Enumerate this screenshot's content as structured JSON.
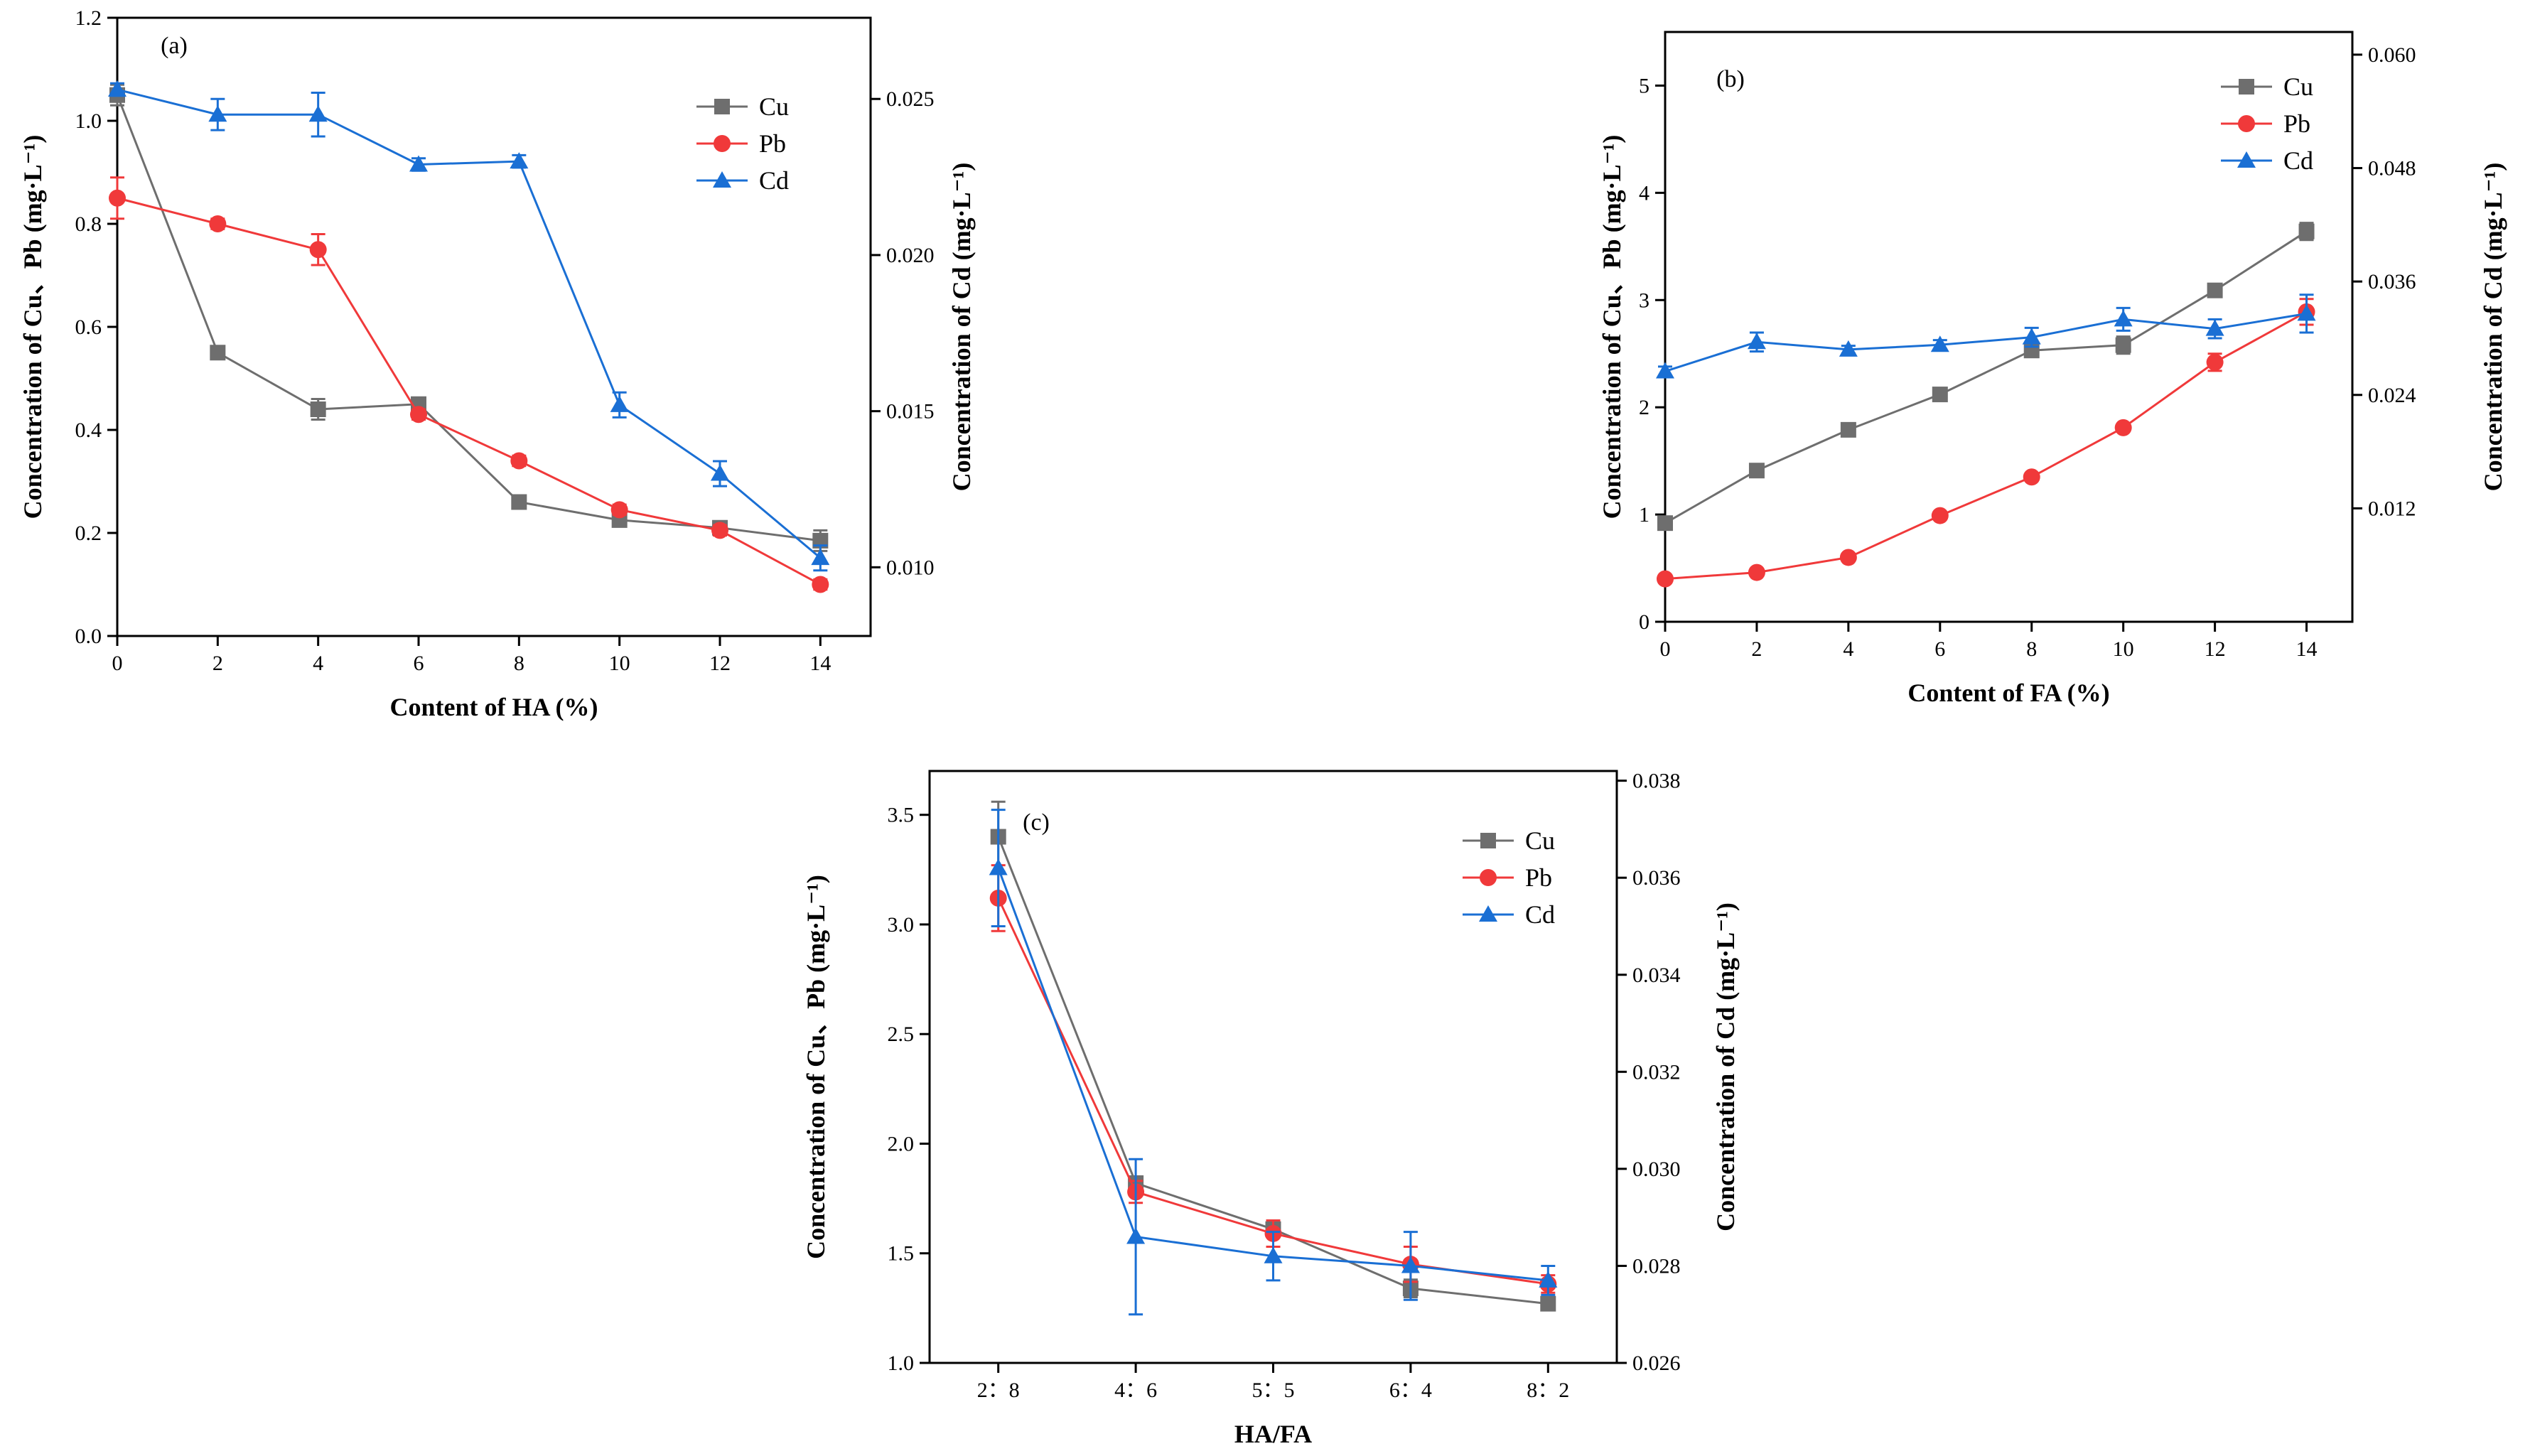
{
  "colors": {
    "cu": "#6e6e6e",
    "pb": "#f0393a",
    "cd": "#1a6fd4",
    "axis": "#000000"
  },
  "chart_data": [
    {
      "type": "line",
      "panel_label": "(a)",
      "xlabel": "Content of HA (%)",
      "ylabel": "Concentration of Cu、Pb (mg·L⁻¹)",
      "y2label": "Concentration of Cd  (mg·L⁻¹)",
      "x": [
        0,
        2,
        4,
        6,
        8,
        10,
        12,
        14
      ],
      "x_ticks": [
        0,
        2,
        4,
        6,
        8,
        10,
        12,
        14
      ],
      "x_tick_labels": [
        "0",
        "2",
        "4",
        "6",
        "8",
        "10",
        "12",
        "14"
      ],
      "xlim": [
        0,
        15
      ],
      "ylim": [
        0,
        1.2
      ],
      "y_ticks": [
        0,
        0.2,
        0.4,
        0.6,
        0.8,
        1.0,
        1.2
      ],
      "y_tick_labels": [
        "0.0",
        "0.2",
        "0.4",
        "0.6",
        "0.8",
        "1.0",
        "1.2"
      ],
      "y2lim": [
        0.0078,
        0.0276
      ],
      "y2_ticks": [
        0.01,
        0.015,
        0.02,
        0.025
      ],
      "y2_tick_labels": [
        "0.010",
        "0.015",
        "0.020",
        "0.025"
      ],
      "series": [
        {
          "name": "Cu",
          "axis": "left",
          "marker": "square",
          "values": [
            1.05,
            0.55,
            0.44,
            0.45,
            0.26,
            0.225,
            0.21,
            0.185
          ],
          "errors": [
            0.02,
            0.01,
            0.02,
            0.01,
            0.01,
            0.01,
            0.01,
            0.02
          ]
        },
        {
          "name": "Pb",
          "axis": "left",
          "marker": "circle",
          "values": [
            0.85,
            0.8,
            0.75,
            0.43,
            0.34,
            0.245,
            0.205,
            0.1
          ],
          "errors": [
            0.04,
            0.01,
            0.03,
            0.01,
            0.01,
            0.01,
            0.01,
            0.01
          ]
        },
        {
          "name": "Cd",
          "axis": "right",
          "marker": "triangle",
          "values": [
            0.0253,
            0.0245,
            0.0245,
            0.0229,
            0.023,
            0.0152,
            0.013,
            0.0103
          ],
          "errors": [
            0.0002,
            0.0005,
            0.0007,
            0.0002,
            0.0002,
            0.0004,
            0.0004,
            0.0004
          ]
        }
      ],
      "legend": "top-right"
    },
    {
      "type": "line",
      "panel_label": "(b)",
      "xlabel": "Content of FA (%)",
      "ylabel": "Concentration of Cu、Pb (mg·L⁻¹)",
      "y2label": "Concentration of Cd  (mg·L⁻¹)",
      "x": [
        0,
        2,
        4,
        6,
        8,
        10,
        12,
        14
      ],
      "x_ticks": [
        0,
        2,
        4,
        6,
        8,
        10,
        12,
        14
      ],
      "x_tick_labels": [
        "0",
        "2",
        "4",
        "6",
        "8",
        "10",
        "12",
        "14"
      ],
      "xlim": [
        0,
        15
      ],
      "ylim": [
        0,
        5.5
      ],
      "y_ticks": [
        0,
        1,
        2,
        3,
        4,
        5
      ],
      "y_tick_labels": [
        "0",
        "1",
        "2",
        "3",
        "4",
        "5"
      ],
      "y2lim": [
        0,
        0.0624
      ],
      "y2_ticks": [
        0.012,
        0.024,
        0.036,
        0.048,
        0.06
      ],
      "y2_tick_labels": [
        "0.012",
        "0.024",
        "0.036",
        "0.048",
        "0.060"
      ],
      "series": [
        {
          "name": "Cu",
          "axis": "left",
          "marker": "square",
          "values": [
            0.92,
            1.41,
            1.79,
            2.12,
            2.53,
            2.58,
            3.09,
            3.64
          ],
          "errors": [
            0.05,
            0.05,
            0.03,
            0.03,
            0.04,
            0.08,
            0.03,
            0.08
          ]
        },
        {
          "name": "Pb",
          "axis": "left",
          "marker": "circle",
          "values": [
            0.4,
            0.46,
            0.6,
            0.99,
            1.35,
            1.81,
            2.42,
            2.89
          ],
          "errors": [
            0.02,
            0.02,
            0.02,
            0.02,
            0.03,
            0.03,
            0.08,
            0.12
          ]
        },
        {
          "name": "Cd",
          "axis": "right",
          "marker": "triangle",
          "values": [
            0.0265,
            0.0296,
            0.0288,
            0.0293,
            0.0301,
            0.032,
            0.031,
            0.0326
          ],
          "errors": [
            0.0005,
            0.001,
            0.0004,
            0.0005,
            0.001,
            0.0012,
            0.001,
            0.002
          ]
        }
      ],
      "legend": "top-right"
    },
    {
      "type": "line",
      "panel_label": "(c)",
      "xlabel": "HA/FA",
      "ylabel": "Concentration of Cu、Pb (mg·L⁻¹)",
      "y2label": "Concentration of  Cd  (mg·L⁻¹)",
      "categories": [
        "2：8",
        "4：6",
        "5：5",
        "6：4",
        "8：2"
      ],
      "ylim": [
        1.0,
        3.7
      ],
      "y_ticks": [
        1.0,
        1.5,
        2.0,
        2.5,
        3.0,
        3.5
      ],
      "y_tick_labels": [
        "1.0",
        "1.5",
        "2.0",
        "2.5",
        "3.0",
        "3.5"
      ],
      "y2lim": [
        0.026,
        0.0382
      ],
      "y2_ticks": [
        0.026,
        0.028,
        0.03,
        0.032,
        0.034,
        0.036,
        0.038
      ],
      "y2_tick_labels": [
        "0.026",
        "0.028",
        "0.030",
        "0.032",
        "0.034",
        "0.036",
        "0.038"
      ],
      "series": [
        {
          "name": "Cu",
          "axis": "left",
          "marker": "square",
          "values": [
            3.4,
            1.82,
            1.61,
            1.34,
            1.27
          ],
          "errors": [
            0.16,
            0.03,
            0.03,
            0.04,
            0.02
          ]
        },
        {
          "name": "Pb",
          "axis": "left",
          "marker": "circle",
          "values": [
            3.12,
            1.78,
            1.59,
            1.45,
            1.36
          ],
          "errors": [
            0.15,
            0.05,
            0.06,
            0.08,
            0.04
          ]
        },
        {
          "name": "Cd",
          "axis": "right",
          "marker": "triangle",
          "values": [
            0.0362,
            0.0286,
            0.0282,
            0.028,
            0.0277
          ],
          "errors": [
            0.0012,
            0.0016,
            0.0005,
            0.0007,
            0.0003
          ]
        }
      ],
      "legend": "top-right"
    }
  ]
}
